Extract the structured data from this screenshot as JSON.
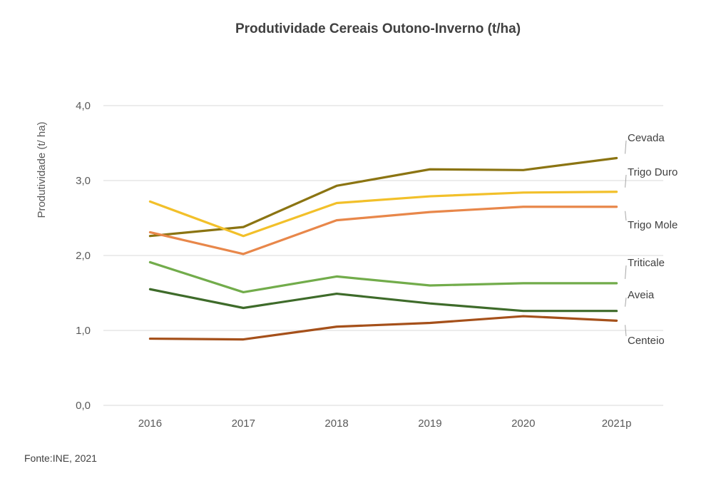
{
  "chart_data": {
    "type": "line",
    "title": "Produtividade Cereais Outono-Inverno (t/ha)",
    "ylabel": "Produtividade (t/ ha)",
    "xlabel": "",
    "categories": [
      "2016",
      "2017",
      "2018",
      "2019",
      "2020",
      "2021p"
    ],
    "ylim": [
      0,
      4
    ],
    "yticks": [
      "0,0",
      "1,0",
      "2,0",
      "3,0",
      "4,0"
    ],
    "grid": true,
    "legend": "inline labels at right end",
    "series": [
      {
        "name": "Cevada",
        "color": "#8B7412",
        "values": [
          2.26,
          2.38,
          2.93,
          3.15,
          3.14,
          3.3
        ]
      },
      {
        "name": "Trigo Duro",
        "color": "#F2C02A",
        "values": [
          2.72,
          2.26,
          2.7,
          2.79,
          2.84,
          2.85
        ]
      },
      {
        "name": "Trigo Mole",
        "color": "#E8874A",
        "values": [
          2.31,
          2.02,
          2.47,
          2.58,
          2.65,
          2.65
        ]
      },
      {
        "name": "Triticale",
        "color": "#72AC4B",
        "values": [
          1.91,
          1.51,
          1.72,
          1.6,
          1.63,
          1.63
        ]
      },
      {
        "name": "Aveia",
        "color": "#3E6B2A",
        "values": [
          1.55,
          1.3,
          1.49,
          1.36,
          1.26,
          1.26
        ]
      },
      {
        "name": "Centeio",
        "color": "#A5501A",
        "values": [
          0.89,
          0.88,
          1.05,
          1.1,
          1.19,
          1.13
        ]
      }
    ]
  },
  "source": "Fonte:INE, 2021"
}
